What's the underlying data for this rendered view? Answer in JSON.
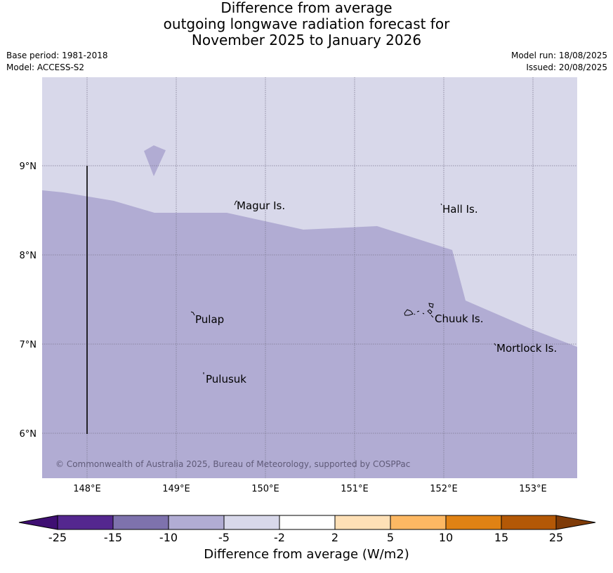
{
  "title_lines": [
    "Difference from average",
    "outgoing longwave radiation forecast for",
    "November 2025 to January 2026"
  ],
  "meta": {
    "base_period": "Base period: 1981-2018",
    "model": "Model: ACCESS-S2",
    "model_run": "Model run: 18/08/2025",
    "issued": "Issued: 20/08/2025"
  },
  "map": {
    "lon_ticks": [
      "148°E",
      "149°E",
      "150°E",
      "151°E",
      "152°E",
      "153°E"
    ],
    "lat_ticks": [
      "9°N",
      "8°N",
      "7°N",
      "6°N"
    ],
    "places": [
      "Magur Is.",
      "Hall Is.",
      "Pulap",
      "Chuuk Is.",
      "Mortlock Is.",
      "Pulusuk"
    ],
    "copyright": "© Commonwealth of Australia 2025, Bureau of Meteorology, supported by COSPPac",
    "colors": {
      "bin_minus10_minus5": "#b1acd3",
      "bin_minus5_minus2": "#d8d8ea"
    }
  },
  "colorbar": {
    "title": "Difference from average (W/m2)",
    "ticks": [
      "-25",
      "-15",
      "-10",
      "-5",
      "-2",
      "2",
      "5",
      "10",
      "15",
      "25"
    ],
    "colors": [
      "#3f0f73",
      "#54278f",
      "#7e72ad",
      "#b1acd3",
      "#d8d8ea",
      "#ffffff",
      "#fee0b6",
      "#fdb863",
      "#e08214",
      "#b35806",
      "#7f3b08"
    ]
  }
}
